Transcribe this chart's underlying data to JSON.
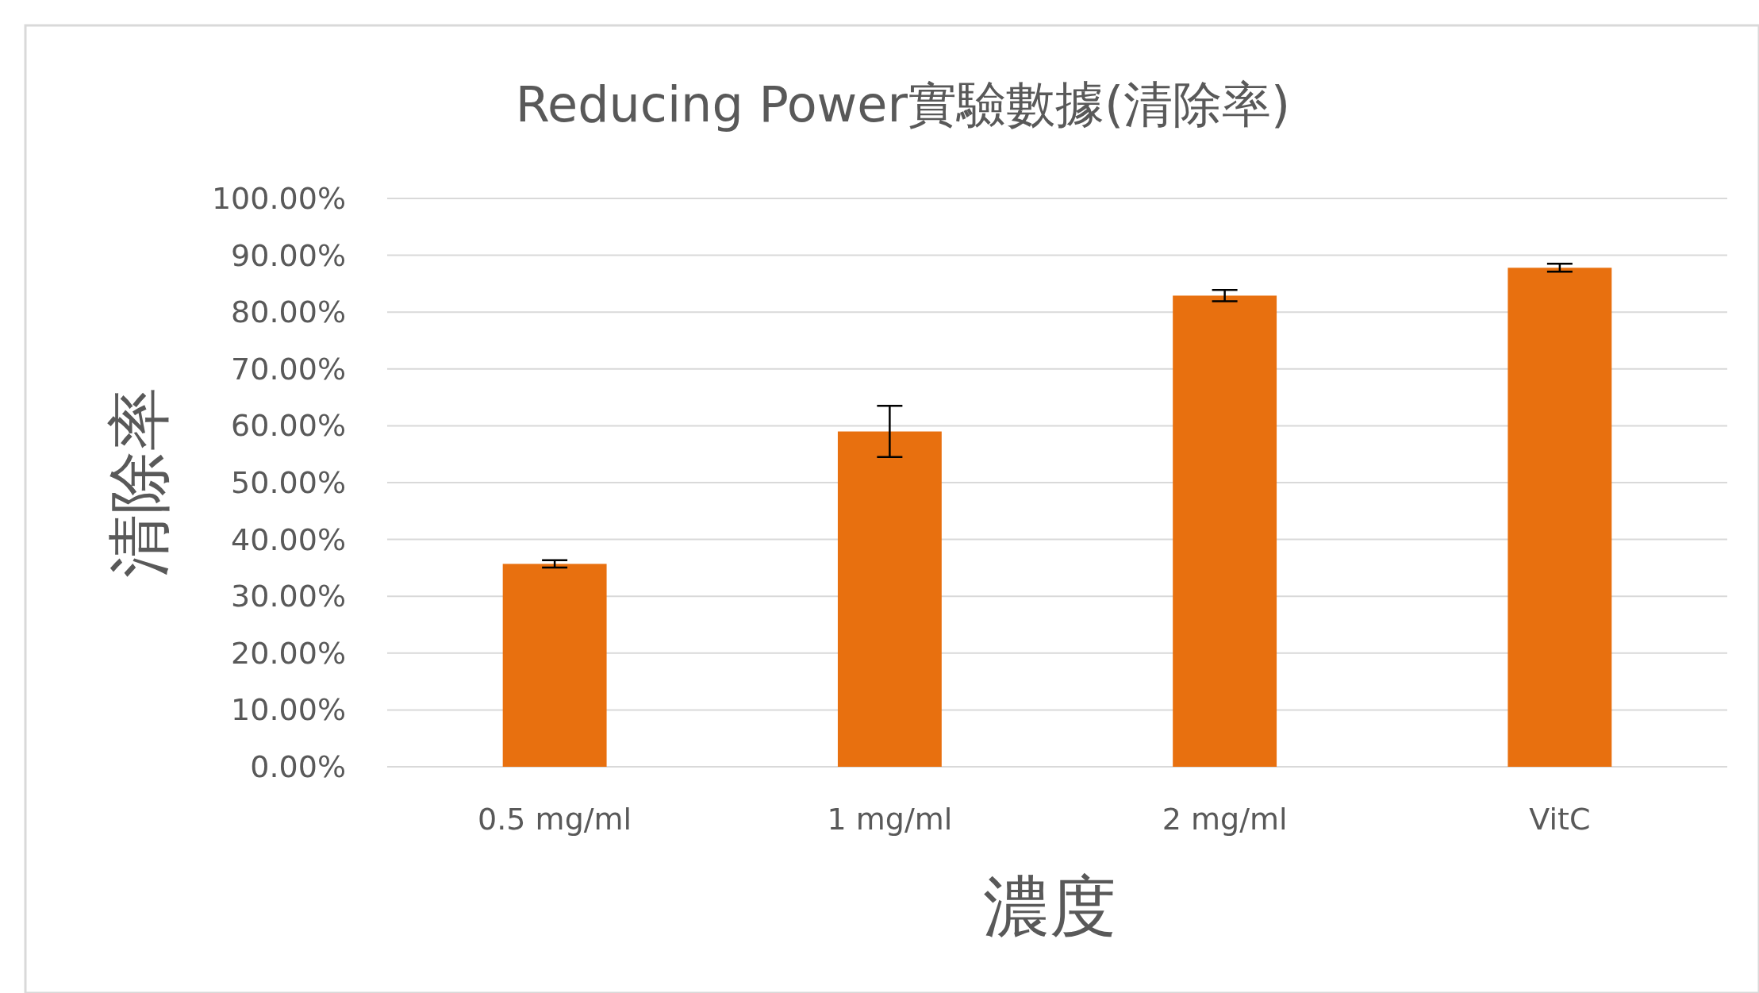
{
  "chart_data": {
    "type": "bar",
    "title": "Reducing Power實驗數據(清除率)",
    "xlabel": "濃度",
    "ylabel": "清除率",
    "categories": [
      "0.5 mg/ml",
      "1 mg/ml",
      "2 mg/ml",
      "VitC"
    ],
    "values": [
      35.7,
      59.0,
      82.9,
      87.8
    ],
    "errors": [
      0.65,
      4.5,
      1.0,
      0.7
    ],
    "color": "#e8700f",
    "ylim": [
      0,
      100
    ],
    "yticks": [
      {
        "value": 0,
        "label": "0.00%"
      },
      {
        "value": 10,
        "label": "10.00%"
      },
      {
        "value": 20,
        "label": "20.00%"
      },
      {
        "value": 30,
        "label": "30.00%"
      },
      {
        "value": 40,
        "label": "40.00%"
      },
      {
        "value": 50,
        "label": "50.00%"
      },
      {
        "value": 60,
        "label": "60.00%"
      },
      {
        "value": 70,
        "label": "70.00%"
      },
      {
        "value": 80,
        "label": "80.00%"
      },
      {
        "value": 90,
        "label": "90.00%"
      },
      {
        "value": 100,
        "label": "100.00%"
      }
    ],
    "grid": "y"
  }
}
